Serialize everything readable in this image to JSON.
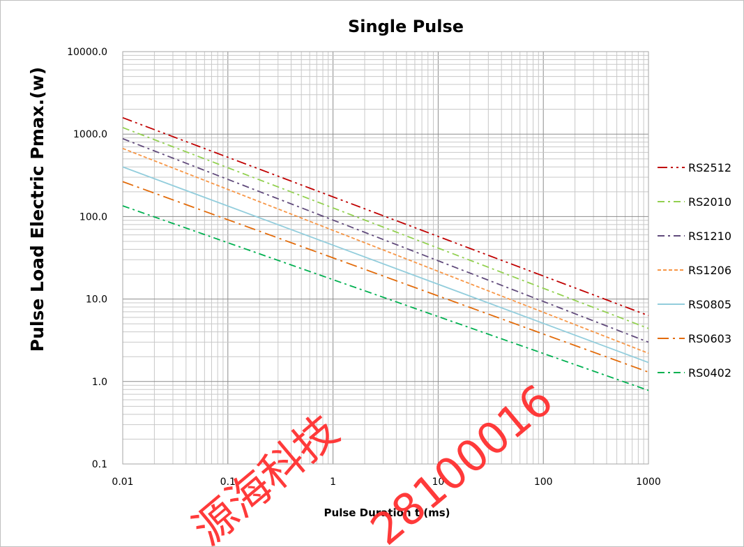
{
  "chart_data": {
    "type": "line",
    "title": "Single Pulse",
    "xlabel": "Pulse Duration  t (ms)",
    "ylabel": "Pulse Load Electric Pmax.(w)",
    "xscale": "log",
    "yscale": "log",
    "xlim": [
      0.01,
      1000
    ],
    "ylim": [
      0.1,
      10000
    ],
    "x_ticks": [
      "0.01",
      "0.1",
      "1",
      "10",
      "100",
      "1000"
    ],
    "y_ticks": [
      "0.1",
      "1.0",
      "10.0",
      "100.0",
      "1000.0",
      "10000.0"
    ],
    "grid": true,
    "legend_position": "right",
    "x": [
      0.01,
      1000
    ],
    "series": [
      {
        "name": "RS2512",
        "color": "#c00000",
        "dash": "dash-dot-dot",
        "values": [
          1580,
          6.3
        ]
      },
      {
        "name": "RS2010",
        "color": "#92d050",
        "dash": "dash-dot",
        "values": [
          1200,
          4.4
        ]
      },
      {
        "name": "RS1210",
        "color": "#604a7b",
        "dash": "dash-dot",
        "values": [
          880,
          3.0
        ]
      },
      {
        "name": "RS1206",
        "color": "#f79646",
        "dash": "dash",
        "values": [
          670,
          2.2
        ]
      },
      {
        "name": "RS0805",
        "color": "#92cddc",
        "dash": "solid",
        "values": [
          400,
          1.7
        ]
      },
      {
        "name": "RS0603",
        "color": "#e26b0a",
        "dash": "long-dash-dot",
        "values": [
          265,
          1.3
        ]
      },
      {
        "name": "RS0402",
        "color": "#00b050",
        "dash": "dash-dot",
        "values": [
          135,
          0.78
        ]
      }
    ]
  },
  "watermark": {
    "text_cn": "源海科技",
    "text_num": "28100016"
  }
}
